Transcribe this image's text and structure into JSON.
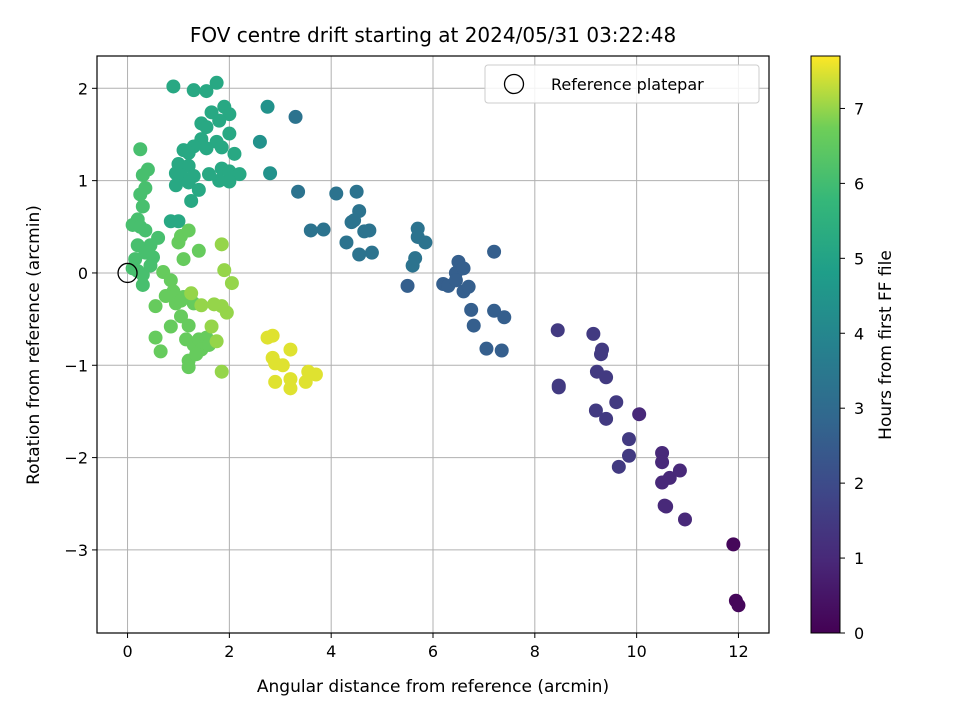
{
  "chart_data": {
    "type": "scatter",
    "title": "FOV centre drift starting at 2024/05/31 03:22:48",
    "xlabel": "Angular distance from reference (arcmin)",
    "ylabel": "Rotation from reference (arcmin)",
    "xlim": [
      -0.6,
      12.6
    ],
    "ylim": [
      -3.9,
      2.35
    ],
    "xticks": [
      0,
      2,
      4,
      6,
      8,
      10,
      12
    ],
    "yticks": [
      -3,
      -2,
      -1,
      0,
      1,
      2
    ],
    "xtick_labels": [
      "0",
      "2",
      "4",
      "6",
      "8",
      "10",
      "12"
    ],
    "ytick_labels": [
      "−3",
      "−2",
      "−1",
      "0",
      "1",
      "2"
    ],
    "grid": true,
    "legend": {
      "placement": "top-right",
      "entries": [
        "Reference platepar"
      ]
    },
    "reference_point": {
      "x": 0,
      "y": 0
    },
    "colorbar": {
      "label": "Hours from first FF file",
      "range": [
        0,
        7.7
      ],
      "ticks": [
        0,
        1,
        2,
        3,
        4,
        5,
        6,
        7
      ],
      "tick_labels": [
        "0",
        "1",
        "2",
        "3",
        "4",
        "5",
        "6",
        "7"
      ],
      "colormap": "viridis"
    },
    "series": [
      {
        "hours": 0.15,
        "points": [
          [
            11.9,
            -2.94
          ],
          [
            11.95,
            -3.55
          ],
          [
            12.0,
            -3.6
          ]
        ]
      },
      {
        "hours": 1.0,
        "points": [
          [
            10.5,
            -1.95
          ],
          [
            10.5,
            -2.05
          ],
          [
            10.5,
            -2.27
          ],
          [
            10.65,
            -2.22
          ],
          [
            10.85,
            -2.14
          ],
          [
            10.95,
            -2.67
          ],
          [
            10.55,
            -2.52
          ],
          [
            10.58,
            -2.53
          ],
          [
            10.05,
            -1.53
          ]
        ]
      },
      {
        "hours": 1.5,
        "points": [
          [
            8.45,
            -0.62
          ],
          [
            8.47,
            -1.22
          ],
          [
            8.47,
            -1.24
          ],
          [
            9.15,
            -0.66
          ],
          [
            9.32,
            -0.83
          ],
          [
            9.3,
            -0.88
          ],
          [
            9.22,
            -1.07
          ],
          [
            9.4,
            -1.13
          ],
          [
            9.2,
            -1.49
          ],
          [
            9.4,
            -1.58
          ],
          [
            9.6,
            -1.4
          ],
          [
            9.85,
            -1.8
          ],
          [
            9.85,
            -1.98
          ],
          [
            9.65,
            -2.1
          ]
        ]
      },
      {
        "hours": 2.6,
        "points": [
          [
            5.5,
            -0.14
          ],
          [
            6.2,
            -0.12
          ],
          [
            6.3,
            -0.14
          ],
          [
            6.5,
            0.12
          ],
          [
            6.45,
            0.0
          ],
          [
            6.6,
            0.05
          ],
          [
            6.45,
            -0.08
          ],
          [
            6.6,
            -0.2
          ],
          [
            6.7,
            -0.15
          ],
          [
            6.75,
            -0.4
          ],
          [
            6.8,
            -0.57
          ],
          [
            7.05,
            -0.82
          ],
          [
            7.2,
            -0.41
          ],
          [
            7.35,
            -0.84
          ],
          [
            7.4,
            -0.48
          ],
          [
            7.2,
            0.23
          ]
        ]
      },
      {
        "hours": 3.3,
        "points": [
          [
            5.6,
            0.08
          ],
          [
            5.65,
            0.16
          ],
          [
            5.7,
            0.39
          ],
          [
            5.7,
            0.48
          ],
          [
            5.85,
            0.33
          ],
          [
            3.3,
            1.69
          ],
          [
            3.35,
            0.88
          ],
          [
            4.1,
            0.86
          ],
          [
            4.5,
            0.88
          ],
          [
            4.55,
            0.67
          ],
          [
            4.65,
            0.45
          ],
          [
            4.75,
            0.46
          ],
          [
            4.8,
            0.22
          ],
          [
            4.55,
            0.2
          ],
          [
            4.4,
            0.55
          ],
          [
            4.45,
            0.57
          ],
          [
            3.6,
            0.46
          ],
          [
            3.85,
            0.47
          ],
          [
            4.3,
            0.33
          ]
        ]
      },
      {
        "hours": 4.4,
        "points": [
          [
            2.6,
            1.42
          ],
          [
            2.75,
            1.8
          ],
          [
            2.8,
            1.08
          ]
        ]
      },
      {
        "hours": 5.2,
        "points": [
          [
            0.9,
            2.02
          ],
          [
            1.3,
            1.98
          ],
          [
            1.55,
            1.97
          ],
          [
            1.75,
            2.06
          ],
          [
            1.9,
            1.8
          ],
          [
            1.65,
            1.74
          ],
          [
            2.0,
            1.72
          ],
          [
            1.8,
            1.65
          ],
          [
            1.45,
            1.62
          ],
          [
            1.55,
            1.58
          ],
          [
            2.0,
            1.51
          ],
          [
            1.75,
            1.42
          ],
          [
            1.45,
            1.45
          ],
          [
            1.85,
            1.36
          ],
          [
            1.55,
            1.35
          ],
          [
            2.1,
            1.29
          ],
          [
            1.3,
            1.37
          ],
          [
            1.2,
            1.3
          ],
          [
            1.1,
            1.33
          ],
          [
            1.0,
            1.18
          ],
          [
            1.2,
            1.16
          ],
          [
            0.95,
            1.08
          ],
          [
            1.05,
            1.06
          ],
          [
            1.3,
            1.05
          ],
          [
            1.6,
            1.07
          ],
          [
            1.85,
            1.13
          ],
          [
            2.0,
            1.1
          ],
          [
            2.2,
            1.07
          ],
          [
            1.2,
            0.98
          ],
          [
            1.4,
            0.9
          ],
          [
            1.8,
            1.0
          ],
          [
            2.0,
            0.99
          ],
          [
            0.95,
            0.95
          ],
          [
            1.25,
            0.78
          ],
          [
            0.85,
            0.56
          ],
          [
            1.0,
            0.56
          ]
        ]
      },
      {
        "hours": 6.1,
        "points": [
          [
            0.25,
            1.34
          ],
          [
            0.3,
            1.06
          ],
          [
            0.4,
            1.12
          ],
          [
            0.35,
            0.92
          ],
          [
            0.25,
            0.85
          ],
          [
            0.3,
            0.72
          ],
          [
            0.2,
            0.58
          ],
          [
            0.1,
            0.52
          ],
          [
            0.35,
            0.46
          ],
          [
            0.25,
            0.5
          ],
          [
            0.6,
            0.38
          ],
          [
            0.45,
            0.3
          ],
          [
            0.2,
            0.3
          ],
          [
            0.35,
            0.22
          ],
          [
            0.5,
            0.17
          ],
          [
            0.15,
            0.15
          ],
          [
            0.1,
            0.05
          ],
          [
            0.2,
            0.02
          ],
          [
            0.3,
            -0.02
          ],
          [
            0.3,
            -0.13
          ],
          [
            0.45,
            0.08
          ]
        ]
      },
      {
        "hours": 6.6,
        "points": [
          [
            1.0,
            0.33
          ],
          [
            1.05,
            0.4
          ],
          [
            1.2,
            0.46
          ],
          [
            1.1,
            0.15
          ],
          [
            0.7,
            0.01
          ],
          [
            0.85,
            -0.08
          ],
          [
            0.9,
            -0.2
          ],
          [
            0.75,
            -0.25
          ],
          [
            0.95,
            -0.33
          ],
          [
            1.1,
            -0.26
          ],
          [
            0.55,
            -0.36
          ],
          [
            1.3,
            -0.33
          ],
          [
            1.05,
            -0.47
          ],
          [
            0.85,
            -0.58
          ],
          [
            1.2,
            -0.57
          ],
          [
            0.55,
            -0.7
          ],
          [
            1.15,
            -0.72
          ],
          [
            0.65,
            -0.85
          ],
          [
            1.3,
            -0.78
          ],
          [
            1.4,
            -0.72
          ],
          [
            1.55,
            -0.7
          ],
          [
            1.45,
            -0.83
          ],
          [
            1.2,
            -0.95
          ],
          [
            1.35,
            -0.88
          ],
          [
            1.6,
            -0.78
          ],
          [
            1.2,
            -1.02
          ],
          [
            1.4,
            0.24
          ],
          [
            1.05,
            -0.3
          ]
        ]
      },
      {
        "hours": 7.0,
        "points": [
          [
            1.85,
            0.31
          ],
          [
            1.9,
            0.03
          ],
          [
            2.05,
            -0.11
          ],
          [
            1.95,
            -0.43
          ],
          [
            1.85,
            -0.36
          ],
          [
            1.7,
            -0.34
          ],
          [
            1.45,
            -0.35
          ],
          [
            1.25,
            -0.22
          ],
          [
            1.65,
            -0.58
          ],
          [
            1.75,
            -0.74
          ],
          [
            1.85,
            -1.07
          ]
        ]
      },
      {
        "hours": 7.5,
        "points": [
          [
            2.75,
            -0.7
          ],
          [
            2.85,
            -0.68
          ],
          [
            3.2,
            -0.83
          ],
          [
            2.85,
            -0.92
          ],
          [
            2.9,
            -0.98
          ],
          [
            3.05,
            -1.0
          ],
          [
            2.9,
            -1.18
          ],
          [
            3.2,
            -1.15
          ],
          [
            3.2,
            -1.25
          ],
          [
            3.5,
            -1.18
          ],
          [
            3.55,
            -1.07
          ],
          [
            3.7,
            -1.1
          ]
        ]
      }
    ]
  }
}
